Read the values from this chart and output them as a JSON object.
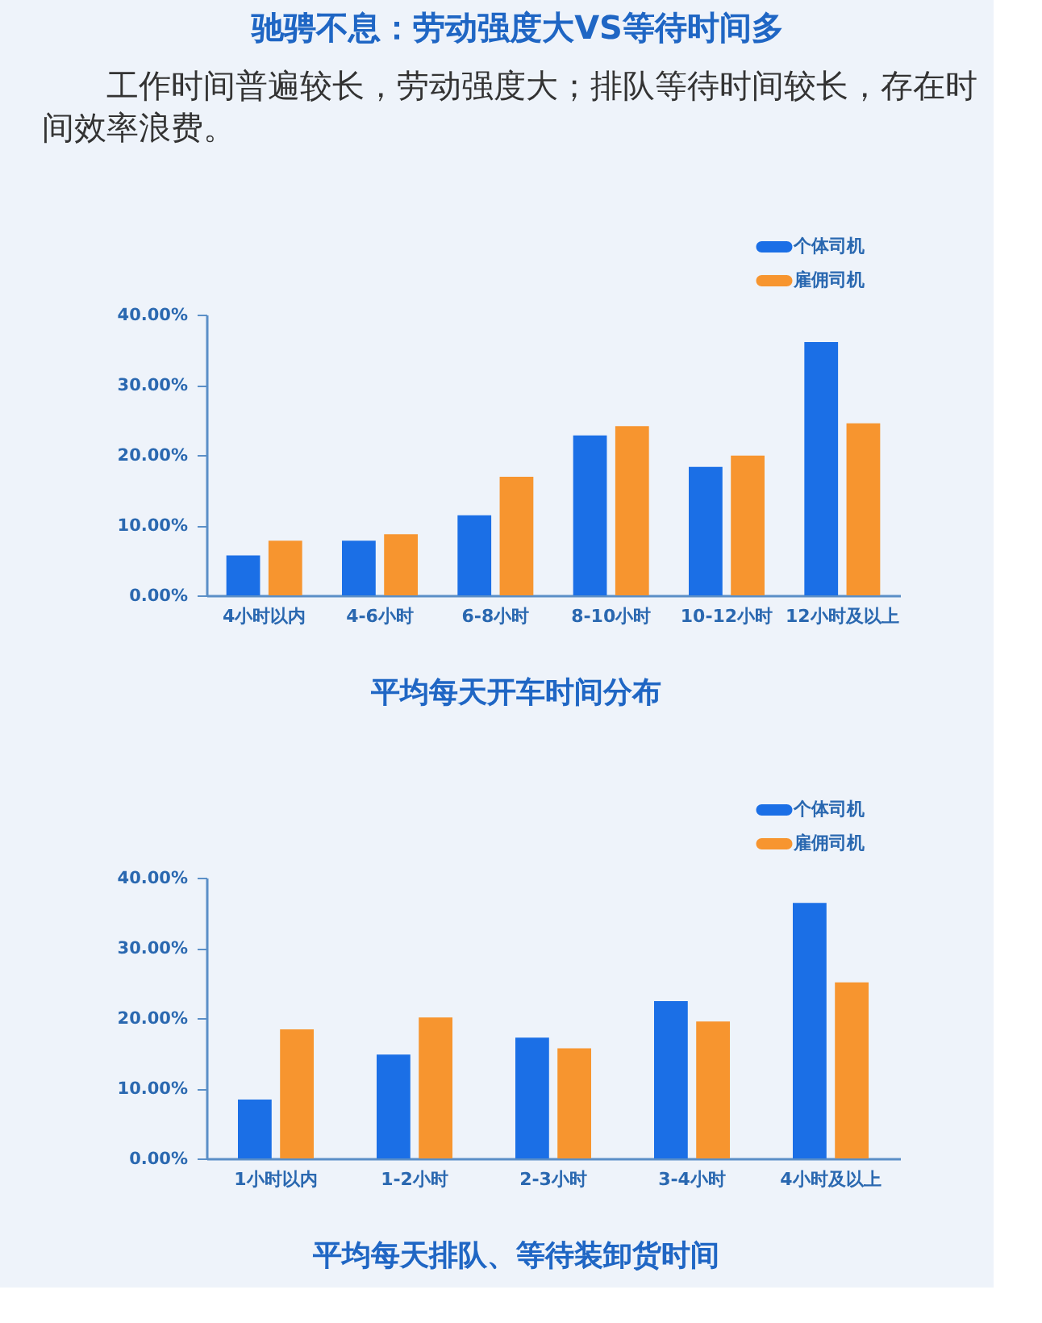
{
  "chart_data": [
    {
      "type": "other",
      "title": "驰骋不息：劳动强度大VS等待时间多",
      "subtitle": "工作时间普遍较长，劳动强度大；排队等待时间较长，存在时间效率浪费。"
    },
    {
      "type": "bar",
      "title": "平均每天开车时间分布",
      "categories": [
        "4小时以内",
        "4-6小时",
        "6-8小时",
        "8-10小时",
        "10-12小时",
        "12小时及以上"
      ],
      "series": [
        {
          "name": "个体司机",
          "color": "#1b6fe6",
          "values": [
            5.7,
            7.8,
            11.4,
            22.8,
            18.3,
            36.1
          ]
        },
        {
          "name": "雇佣司机",
          "color": "#f7952f",
          "values": [
            7.8,
            8.7,
            16.9,
            24.1,
            19.9,
            24.5
          ]
        }
      ],
      "ylim": [
        0,
        40
      ],
      "yticks": [
        {
          "value": 0,
          "label": "0.00%"
        },
        {
          "value": 10,
          "label": "10.00%"
        },
        {
          "value": 20,
          "label": "20.00%"
        },
        {
          "value": 30,
          "label": "30.00%"
        },
        {
          "value": 40,
          "label": "40.00%"
        }
      ],
      "legend": "top right"
    },
    {
      "type": "bar",
      "title": "平均每天排队、等待装卸货时间",
      "categories": [
        "1小时以内",
        "1-2小时",
        "2-3小时",
        "3-4小时",
        "4小时及以上"
      ],
      "series": [
        {
          "name": "个体司机",
          "color": "#1b6fe6",
          "values": [
            8.4,
            14.8,
            17.2,
            22.4,
            36.4
          ]
        },
        {
          "name": "雇佣司机",
          "color": "#f7952f",
          "values": [
            18.4,
            20.1,
            15.7,
            19.5,
            25.1
          ]
        }
      ],
      "ylim": [
        0,
        40
      ],
      "yticks": [
        {
          "value": 0,
          "label": "0.00%"
        },
        {
          "value": 10,
          "label": "10.00%"
        },
        {
          "value": 20,
          "label": "20.00%"
        },
        {
          "value": 30,
          "label": "30.00%"
        },
        {
          "value": 40,
          "label": "40.00%"
        }
      ],
      "legend": "top right"
    }
  ]
}
